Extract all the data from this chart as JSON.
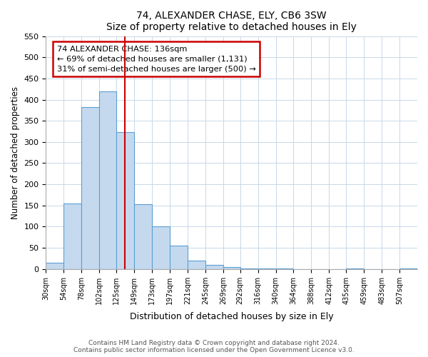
{
  "title": "74, ALEXANDER CHASE, ELY, CB6 3SW",
  "subtitle": "Size of property relative to detached houses in Ely",
  "xlabel": "Distribution of detached houses by size in Ely",
  "ylabel": "Number of detached properties",
  "bin_labels": [
    "30sqm",
    "54sqm",
    "78sqm",
    "102sqm",
    "125sqm",
    "149sqm",
    "173sqm",
    "197sqm",
    "221sqm",
    "245sqm",
    "269sqm",
    "292sqm",
    "316sqm",
    "340sqm",
    "364sqm",
    "388sqm",
    "412sqm",
    "435sqm",
    "459sqm",
    "483sqm",
    "507sqm"
  ],
  "bin_edges_sqm": [
    30,
    54,
    78,
    102,
    125,
    149,
    173,
    197,
    221,
    245,
    269,
    292,
    316,
    340,
    364,
    388,
    412,
    435,
    459,
    483,
    507,
    531
  ],
  "bar_heights": [
    15,
    155,
    382,
    420,
    323,
    153,
    100,
    55,
    20,
    10,
    5,
    2,
    1,
    1,
    0,
    0,
    0,
    1,
    0,
    0,
    2
  ],
  "bar_color": "#c5d9ee",
  "bar_edge_color": "#5a9fd4",
  "vline_sqm": 136,
  "vline_color": "#cc0000",
  "annotation_text": "74 ALEXANDER CHASE: 136sqm\n← 69% of detached houses are smaller (1,131)\n31% of semi-detached houses are larger (500) →",
  "annotation_box_color": "#cc0000",
  "ylim": [
    0,
    550
  ],
  "yticks": [
    0,
    50,
    100,
    150,
    200,
    250,
    300,
    350,
    400,
    450,
    500,
    550
  ],
  "footer_text": "Contains HM Land Registry data © Crown copyright and database right 2024.\nContains public sector information licensed under the Open Government Licence v3.0.",
  "bg_color": "#ffffff",
  "grid_color": "#c8d8e8"
}
